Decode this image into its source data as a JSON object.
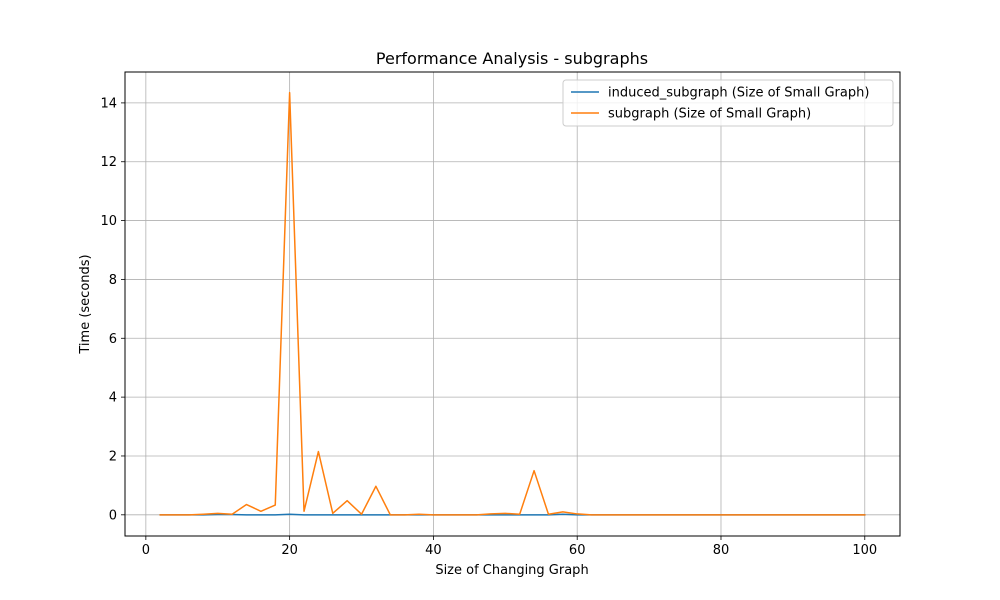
{
  "chart_data": {
    "type": "line",
    "title": "Performance Analysis - subgraphs",
    "xlabel": "Size of Changing Graph",
    "ylabel": "Time (seconds)",
    "xlim": [
      -2.9,
      104.9
    ],
    "ylim": [
      -0.72,
      15.05
    ],
    "xticks": [
      0,
      20,
      40,
      60,
      80,
      100
    ],
    "yticks": [
      0,
      2,
      4,
      6,
      8,
      10,
      12,
      14
    ],
    "grid": true,
    "legend_position": "upper right",
    "x": [
      2,
      4,
      6,
      8,
      10,
      12,
      14,
      16,
      18,
      20,
      22,
      24,
      26,
      28,
      30,
      32,
      34,
      36,
      38,
      40,
      42,
      44,
      46,
      48,
      50,
      52,
      54,
      56,
      58,
      60,
      62,
      64,
      66,
      68,
      70,
      72,
      74,
      76,
      78,
      80,
      82,
      84,
      86,
      88,
      90,
      92,
      94,
      96,
      98,
      100
    ],
    "series": [
      {
        "name": "induced_subgraph (Size of Small Graph)",
        "color": "#1f77b4",
        "values": [
          0,
          0,
          0,
          0,
          0.01,
          0.01,
          0,
          0,
          0,
          0.02,
          0,
          0,
          0,
          0,
          0,
          0,
          0,
          0,
          0,
          0,
          0,
          0,
          0,
          0,
          0,
          0,
          0,
          0,
          0.02,
          0,
          0,
          0,
          0,
          0,
          0,
          0,
          0,
          0,
          0,
          0,
          0,
          0,
          0,
          0,
          0,
          0,
          0,
          0,
          0,
          0
        ]
      },
      {
        "name": "subgraph (Size of Small Graph)",
        "color": "#ff7f0e",
        "values": [
          0,
          0,
          0,
          0.02,
          0.05,
          0.02,
          0.35,
          0.12,
          0.33,
          14.35,
          0.12,
          2.15,
          0.05,
          0.48,
          0.02,
          0.97,
          0,
          0,
          0.02,
          0,
          0,
          0,
          0,
          0.03,
          0.05,
          0.02,
          1.5,
          0.02,
          0.1,
          0.03,
          0,
          0,
          0,
          0,
          0,
          0,
          0,
          0,
          0,
          0,
          0,
          0,
          0,
          0,
          0,
          0,
          0,
          0,
          0,
          0
        ]
      }
    ]
  }
}
